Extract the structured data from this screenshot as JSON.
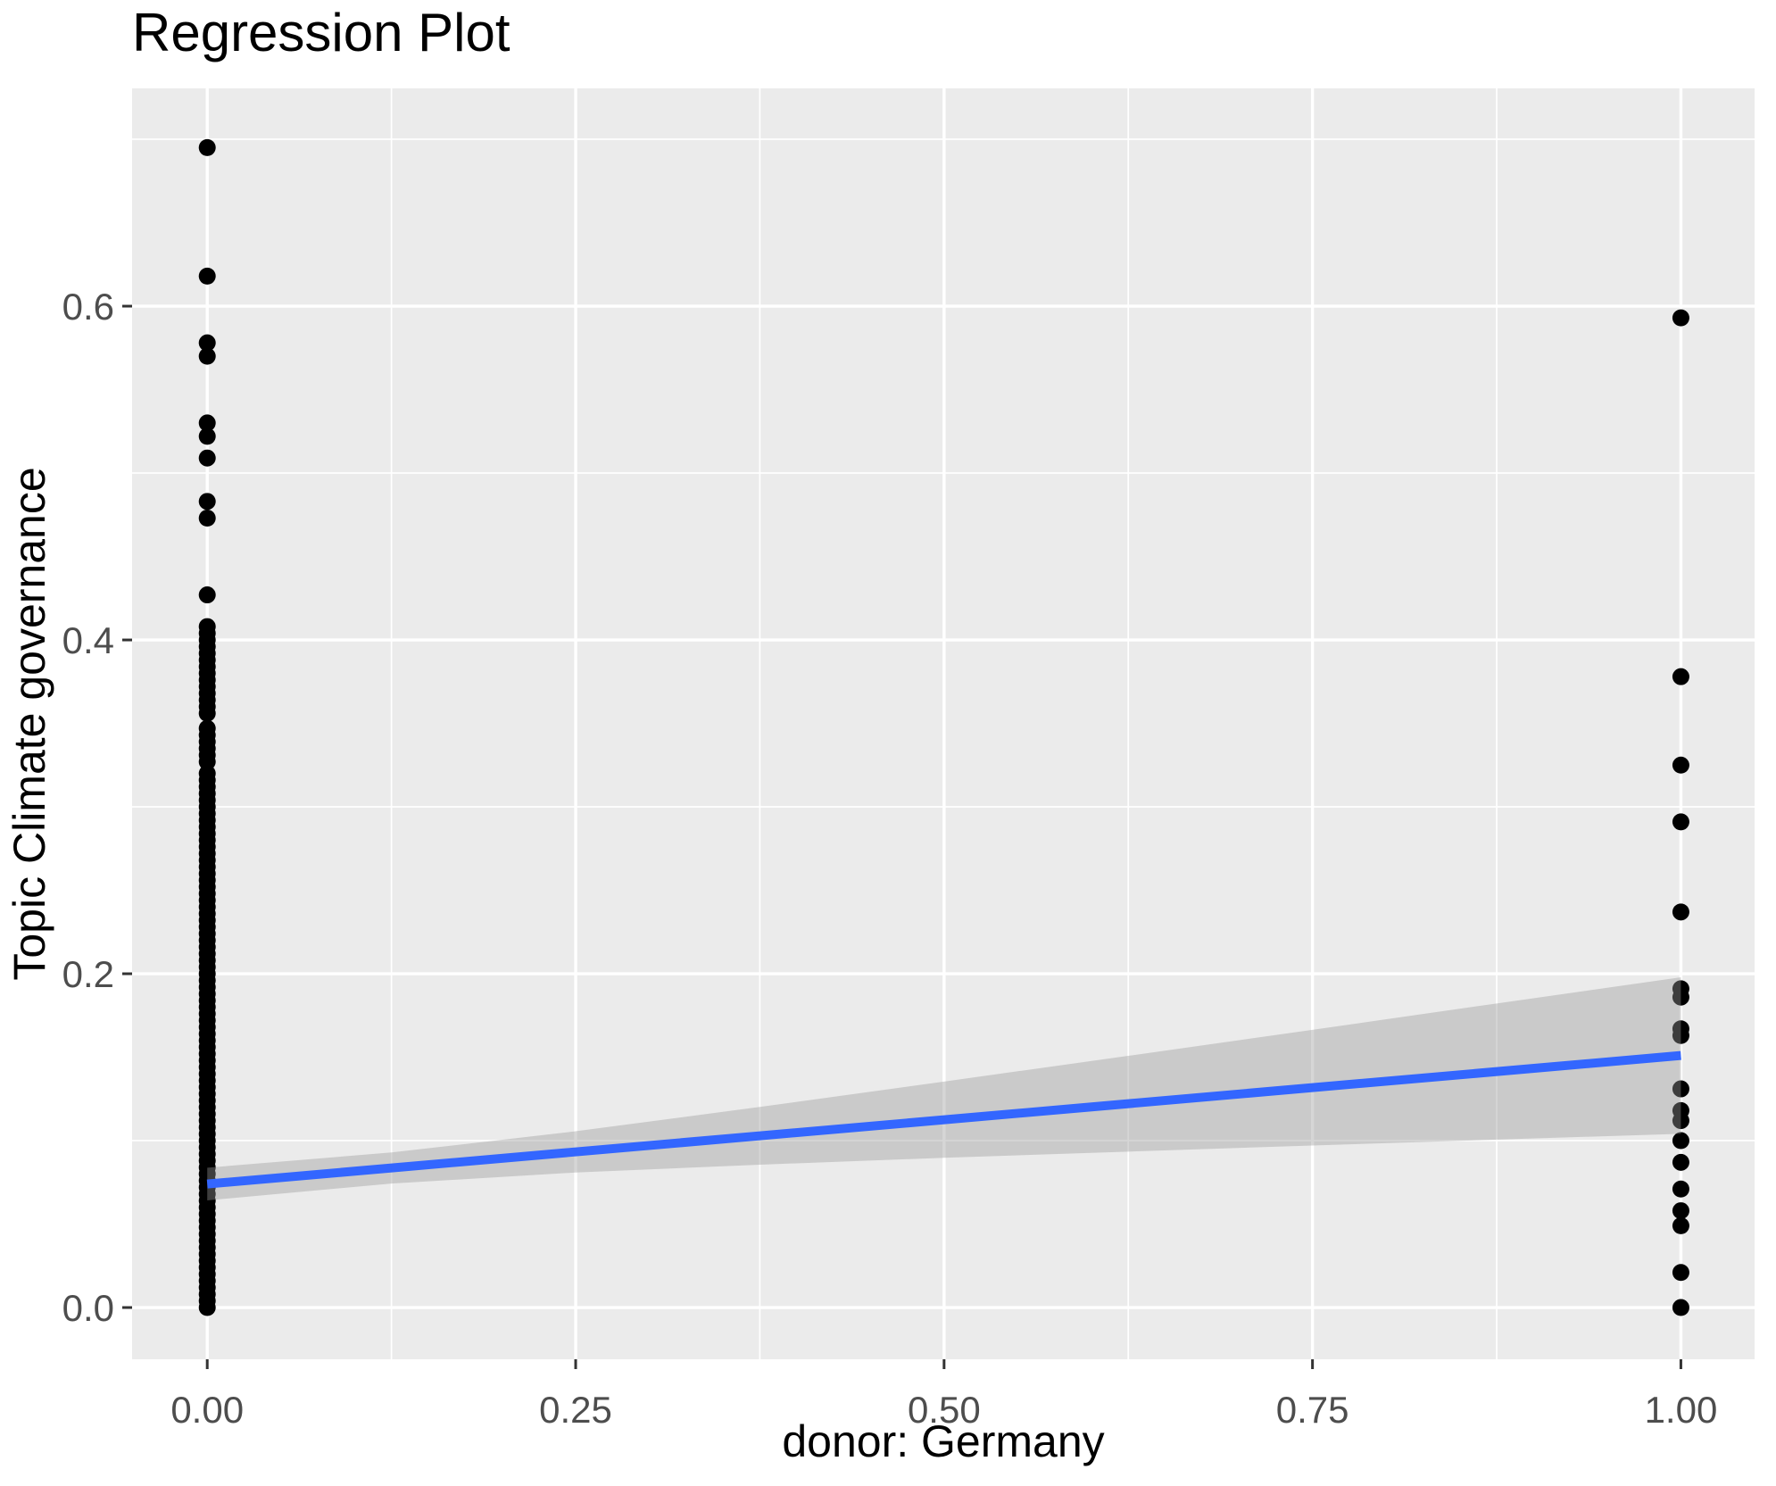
{
  "title": "Regression Plot",
  "colors": {
    "page_background": "#FFFFFF",
    "panel_background": "#EBEBEB",
    "grid": "#FFFFFF",
    "point": "#000000",
    "smooth_line": "#3366FF",
    "ribbon": "rgba(153,153,153,0.4)",
    "tick_label": "#4D4D4D",
    "tick_mark": "#333333",
    "title_text": "#000000"
  },
  "chart_data": {
    "type": "scatter",
    "title": "Regression Plot",
    "xlabel": "donor: Germany",
    "ylabel": "Topic Climate governance",
    "xlim": [
      -0.051,
      1.05
    ],
    "ylim": [
      -0.031,
      0.7305
    ],
    "grid": true,
    "legend": "none",
    "x_ticks": {
      "values": [
        0,
        0.25,
        0.5,
        0.75,
        1
      ],
      "labels": [
        "0.00",
        "0.25",
        "0.50",
        "0.75",
        "1.00"
      ]
    },
    "y_ticks": {
      "values": [
        0,
        0.2,
        0.4,
        0.6
      ],
      "labels": [
        "0.0",
        "0.2",
        "0.4",
        "0.6"
      ]
    },
    "x_minor_gridlines": [
      0.125,
      0.375,
      0.625,
      0.875
    ],
    "y_minor_gridlines": [
      0.1,
      0.3,
      0.5,
      0.7
    ],
    "series": [
      {
        "name": "observations at donor=0",
        "x_value": 0,
        "dense_runs": [
          {
            "from": 0.0,
            "to": 0.322,
            "step": 0.004
          },
          {
            "from": 0.327,
            "to": 0.349,
            "step": 0.004
          },
          {
            "from": 0.356,
            "to": 0.408,
            "step": 0.004
          }
        ],
        "discrete_y": [
          0.427,
          0.473,
          0.483,
          0.509,
          0.522,
          0.53,
          0.57,
          0.578,
          0.618,
          0.695
        ]
      },
      {
        "name": "observations at donor=1",
        "x_value": 1,
        "dense_runs": [],
        "discrete_y": [
          0.0,
          0.021,
          0.049,
          0.058,
          0.071,
          0.087,
          0.1,
          0.112,
          0.118,
          0.131,
          0.163,
          0.167,
          0.186,
          0.191,
          0.237,
          0.291,
          0.325,
          0.378,
          0.593
        ]
      }
    ],
    "regression_line": {
      "x": [
        0,
        1
      ],
      "y": [
        0.074,
        0.151
      ]
    },
    "confidence_ribbon": {
      "x": [
        0,
        0.125,
        0.25,
        0.375,
        0.5,
        0.625,
        0.75,
        0.875,
        1
      ],
      "lower": [
        0.0642,
        0.0743,
        0.0809,
        0.0856,
        0.0897,
        0.0934,
        0.0971,
        0.1006,
        0.1041
      ],
      "upper": [
        0.0838,
        0.0929,
        0.1056,
        0.1202,
        0.1354,
        0.1508,
        0.1664,
        0.1822,
        0.1979
      ]
    }
  }
}
